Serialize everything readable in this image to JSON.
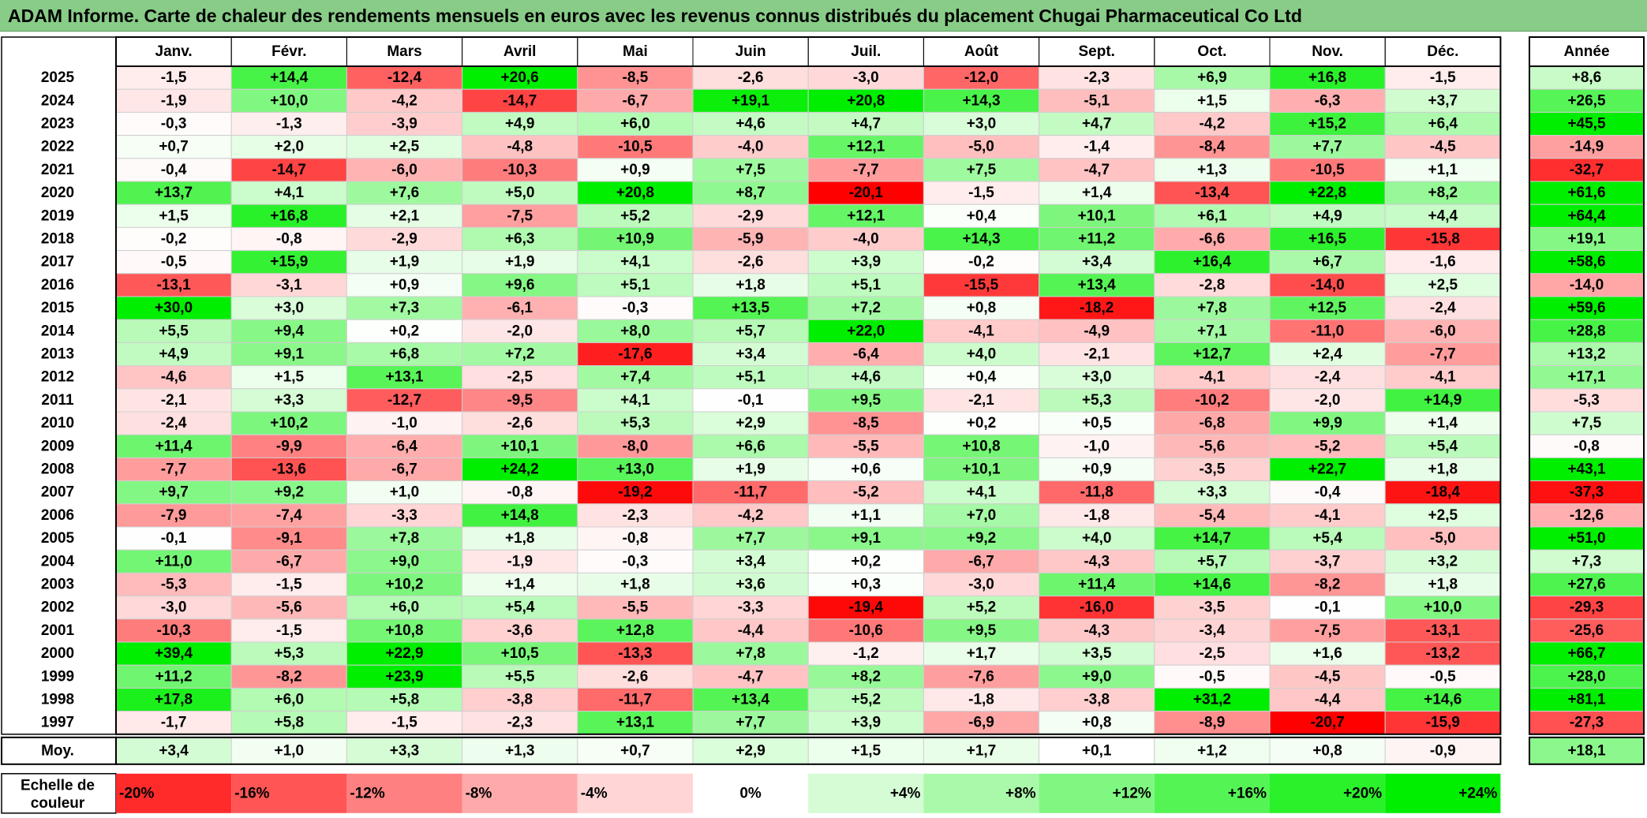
{
  "title": "ADAM Informe. Carte de chaleur des rendements mensuels en euros avec les revenus connus distribués du placement Chugai Pharmaceutical Co Ltd",
  "colors": {
    "negative_max": "#ff0000",
    "neutral": "#ffffff",
    "positive_max": "#00ee00",
    "title_bg": "#88cc88"
  },
  "chart_data": {
    "type": "heatmap",
    "months": [
      "Janv.",
      "Févr.",
      "Mars",
      "Avril",
      "Mai",
      "Juin",
      "Juil.",
      "Août",
      "Sept.",
      "Oct.",
      "Nov.",
      "Déc."
    ],
    "year_header": "Année",
    "rows": [
      {
        "year": "2025",
        "values": [
          "-1,5",
          "+14,4",
          "-12,4",
          "+20,6",
          "-8,5",
          "-2,6",
          "-3,0",
          "-12,0",
          "-2,3",
          "+6,9",
          "+16,8",
          "-1,5"
        ],
        "annual": "+8,6"
      },
      {
        "year": "2024",
        "values": [
          "-1,9",
          "+10,0",
          "-4,2",
          "-14,7",
          "-6,7",
          "+19,1",
          "+20,8",
          "+14,3",
          "-5,1",
          "+1,5",
          "-6,3",
          "+3,7"
        ],
        "annual": "+26,5"
      },
      {
        "year": "2023",
        "values": [
          "-0,3",
          "-1,3",
          "-3,9",
          "+4,9",
          "+6,0",
          "+4,6",
          "+4,7",
          "+3,0",
          "+4,7",
          "-4,2",
          "+15,2",
          "+6,4"
        ],
        "annual": "+45,5"
      },
      {
        "year": "2022",
        "values": [
          "+0,7",
          "+2,0",
          "+2,5",
          "-4,8",
          "-10,5",
          "-4,0",
          "+12,1",
          "-5,0",
          "-1,4",
          "-8,4",
          "+7,7",
          "-4,5"
        ],
        "annual": "-14,9"
      },
      {
        "year": "2021",
        "values": [
          "-0,4",
          "-14,7",
          "-6,0",
          "-10,3",
          "+0,9",
          "+7,5",
          "-7,7",
          "+7,5",
          "-4,7",
          "+1,3",
          "-10,5",
          "+1,1"
        ],
        "annual": "-32,7"
      },
      {
        "year": "2020",
        "values": [
          "+13,7",
          "+4,1",
          "+7,6",
          "+5,0",
          "+20,8",
          "+8,7",
          "-20,1",
          "-1,5",
          "+1,4",
          "-13,4",
          "+22,8",
          "+8,2"
        ],
        "annual": "+61,6"
      },
      {
        "year": "2019",
        "values": [
          "+1,5",
          "+16,8",
          "+2,1",
          "-7,5",
          "+5,2",
          "-2,9",
          "+12,1",
          "+0,4",
          "+10,1",
          "+6,1",
          "+4,9",
          "+4,4"
        ],
        "annual": "+64,4"
      },
      {
        "year": "2018",
        "values": [
          "-0,2",
          "-0,8",
          "-2,9",
          "+6,3",
          "+10,9",
          "-5,9",
          "-4,0",
          "+14,3",
          "+11,2",
          "-6,6",
          "+16,5",
          "-15,8"
        ],
        "annual": "+19,1"
      },
      {
        "year": "2017",
        "values": [
          "-0,5",
          "+15,9",
          "+1,9",
          "+1,9",
          "+4,1",
          "-2,6",
          "+3,9",
          "-0,2",
          "+3,4",
          "+16,4",
          "+6,7",
          "-1,6"
        ],
        "annual": "+58,6"
      },
      {
        "year": "2016",
        "values": [
          "-13,1",
          "-3,1",
          "+0,9",
          "+9,6",
          "+5,1",
          "+1,8",
          "+5,1",
          "-15,5",
          "+13,4",
          "-2,8",
          "-14,0",
          "+2,5"
        ],
        "annual": "-14,0"
      },
      {
        "year": "2015",
        "values": [
          "+30,0",
          "+3,0",
          "+7,3",
          "-6,1",
          "-0,3",
          "+13,5",
          "+7,2",
          "+0,8",
          "-18,2",
          "+7,8",
          "+12,5",
          "-2,4"
        ],
        "annual": "+59,6"
      },
      {
        "year": "2014",
        "values": [
          "+5,5",
          "+9,4",
          "+0,2",
          "-2,0",
          "+8,0",
          "+5,7",
          "+22,0",
          "-4,1",
          "-4,9",
          "+7,1",
          "-11,0",
          "-6,0"
        ],
        "annual": "+28,8"
      },
      {
        "year": "2013",
        "values": [
          "+4,9",
          "+9,1",
          "+6,8",
          "+7,2",
          "-17,6",
          "+3,4",
          "-6,4",
          "+4,0",
          "-2,1",
          "+12,7",
          "+2,4",
          "-7,7"
        ],
        "annual": "+13,2"
      },
      {
        "year": "2012",
        "values": [
          "-4,6",
          "+1,5",
          "+13,1",
          "-2,5",
          "+7,4",
          "+5,1",
          "+4,6",
          "+0,4",
          "+3,0",
          "-4,1",
          "-2,4",
          "-4,1"
        ],
        "annual": "+17,1"
      },
      {
        "year": "2011",
        "values": [
          "-2,1",
          "+3,3",
          "-12,7",
          "-9,5",
          "+4,1",
          "-0,1",
          "+9,5",
          "-2,1",
          "+5,3",
          "-10,2",
          "-2,0",
          "+14,9"
        ],
        "annual": "-5,3"
      },
      {
        "year": "2010",
        "values": [
          "-2,4",
          "+10,2",
          "-1,0",
          "-2,6",
          "+5,3",
          "+2,9",
          "-8,5",
          "+0,2",
          "+0,5",
          "-6,8",
          "+9,9",
          "+1,4"
        ],
        "annual": "+7,5"
      },
      {
        "year": "2009",
        "values": [
          "+11,4",
          "-9,9",
          "-6,4",
          "+10,1",
          "-8,0",
          "+6,6",
          "-5,5",
          "+10,8",
          "-1,0",
          "-5,6",
          "-5,2",
          "+5,4"
        ],
        "annual": "-0,8"
      },
      {
        "year": "2008",
        "values": [
          "-7,7",
          "-13,6",
          "-6,7",
          "+24,2",
          "+13,0",
          "+1,9",
          "+0,6",
          "+10,1",
          "+0,9",
          "-3,5",
          "+22,7",
          "+1,8"
        ],
        "annual": "+43,1"
      },
      {
        "year": "2007",
        "values": [
          "+9,7",
          "+9,2",
          "+1,0",
          "-0,8",
          "-19,2",
          "-11,7",
          "-5,2",
          "+4,1",
          "-11,8",
          "+3,3",
          "-0,4",
          "-18,4"
        ],
        "annual": "-37,3"
      },
      {
        "year": "2006",
        "values": [
          "-7,9",
          "-7,4",
          "-3,3",
          "+14,8",
          "-2,3",
          "-4,2",
          "+1,1",
          "+7,0",
          "-1,8",
          "-5,4",
          "-4,1",
          "+2,5"
        ],
        "annual": "-12,6"
      },
      {
        "year": "2005",
        "values": [
          "-0,1",
          "-9,1",
          "+7,8",
          "+1,8",
          "-0,8",
          "+7,7",
          "+9,1",
          "+9,2",
          "+4,0",
          "+14,7",
          "+5,4",
          "-5,0"
        ],
        "annual": "+51,0"
      },
      {
        "year": "2004",
        "values": [
          "+11,0",
          "-6,7",
          "+9,0",
          "-1,9",
          "-0,3",
          "+3,4",
          "+0,2",
          "-6,7",
          "-4,3",
          "+5,7",
          "-3,7",
          "+3,2"
        ],
        "annual": "+7,3"
      },
      {
        "year": "2003",
        "values": [
          "-5,3",
          "-1,5",
          "+10,2",
          "+1,4",
          "+1,8",
          "+3,6",
          "+0,3",
          "-3,0",
          "+11,4",
          "+14,6",
          "-8,2",
          "+1,8"
        ],
        "annual": "+27,6"
      },
      {
        "year": "2002",
        "values": [
          "-3,0",
          "-5,6",
          "+6,0",
          "+5,4",
          "-5,5",
          "-3,3",
          "-19,4",
          "+5,2",
          "-16,0",
          "-3,5",
          "-0,1",
          "+10,0"
        ],
        "annual": "-29,3"
      },
      {
        "year": "2001",
        "values": [
          "-10,3",
          "-1,5",
          "+10,8",
          "-3,6",
          "+12,8",
          "-4,4",
          "-10,6",
          "+9,5",
          "-4,3",
          "-3,4",
          "-7,5",
          "-13,1"
        ],
        "annual": "-25,6"
      },
      {
        "year": "2000",
        "values": [
          "+39,4",
          "+5,3",
          "+22,9",
          "+10,5",
          "-13,3",
          "+7,8",
          "-1,2",
          "+1,7",
          "+3,5",
          "-2,5",
          "+1,6",
          "-13,2"
        ],
        "annual": "+66,7"
      },
      {
        "year": "1999",
        "values": [
          "+11,2",
          "-8,2",
          "+23,9",
          "+5,5",
          "-2,6",
          "-4,7",
          "+8,2",
          "-7,6",
          "+9,0",
          "-0,5",
          "-4,5",
          "-0,5"
        ],
        "annual": "+28,0"
      },
      {
        "year": "1998",
        "values": [
          "+17,8",
          "+6,0",
          "+5,8",
          "-3,8",
          "-11,7",
          "+13,4",
          "+5,2",
          "-1,8",
          "-3,8",
          "+31,2",
          "-4,4",
          "+14,6"
        ],
        "annual": "+81,1"
      },
      {
        "year": "1997",
        "values": [
          "-1,7",
          "+5,8",
          "-1,5",
          "-2,3",
          "+13,1",
          "+7,7",
          "+3,9",
          "-6,9",
          "+0,8",
          "-8,9",
          "-20,7",
          "-15,9"
        ],
        "annual": "-27,3"
      }
    ],
    "average": {
      "label": "Moy.",
      "values": [
        "+3,4",
        "+1,0",
        "+3,3",
        "+1,3",
        "+0,7",
        "+2,9",
        "+1,5",
        "+1,7",
        "+0,1",
        "+1,2",
        "+0,8",
        "-0,9"
      ],
      "annual": "+18,1"
    },
    "scale": {
      "label_line1": "Echelle de",
      "label_line2": "couleur",
      "steps": [
        "-20%",
        "-16%",
        "-12%",
        "-8%",
        "-4%",
        "0%",
        "+4%",
        "+8%",
        "+12%",
        "+16%",
        "+20%",
        "+24%"
      ],
      "step_values": [
        -20,
        -16,
        -12,
        -8,
        -4,
        0,
        4,
        8,
        12,
        16,
        20,
        24
      ]
    }
  }
}
